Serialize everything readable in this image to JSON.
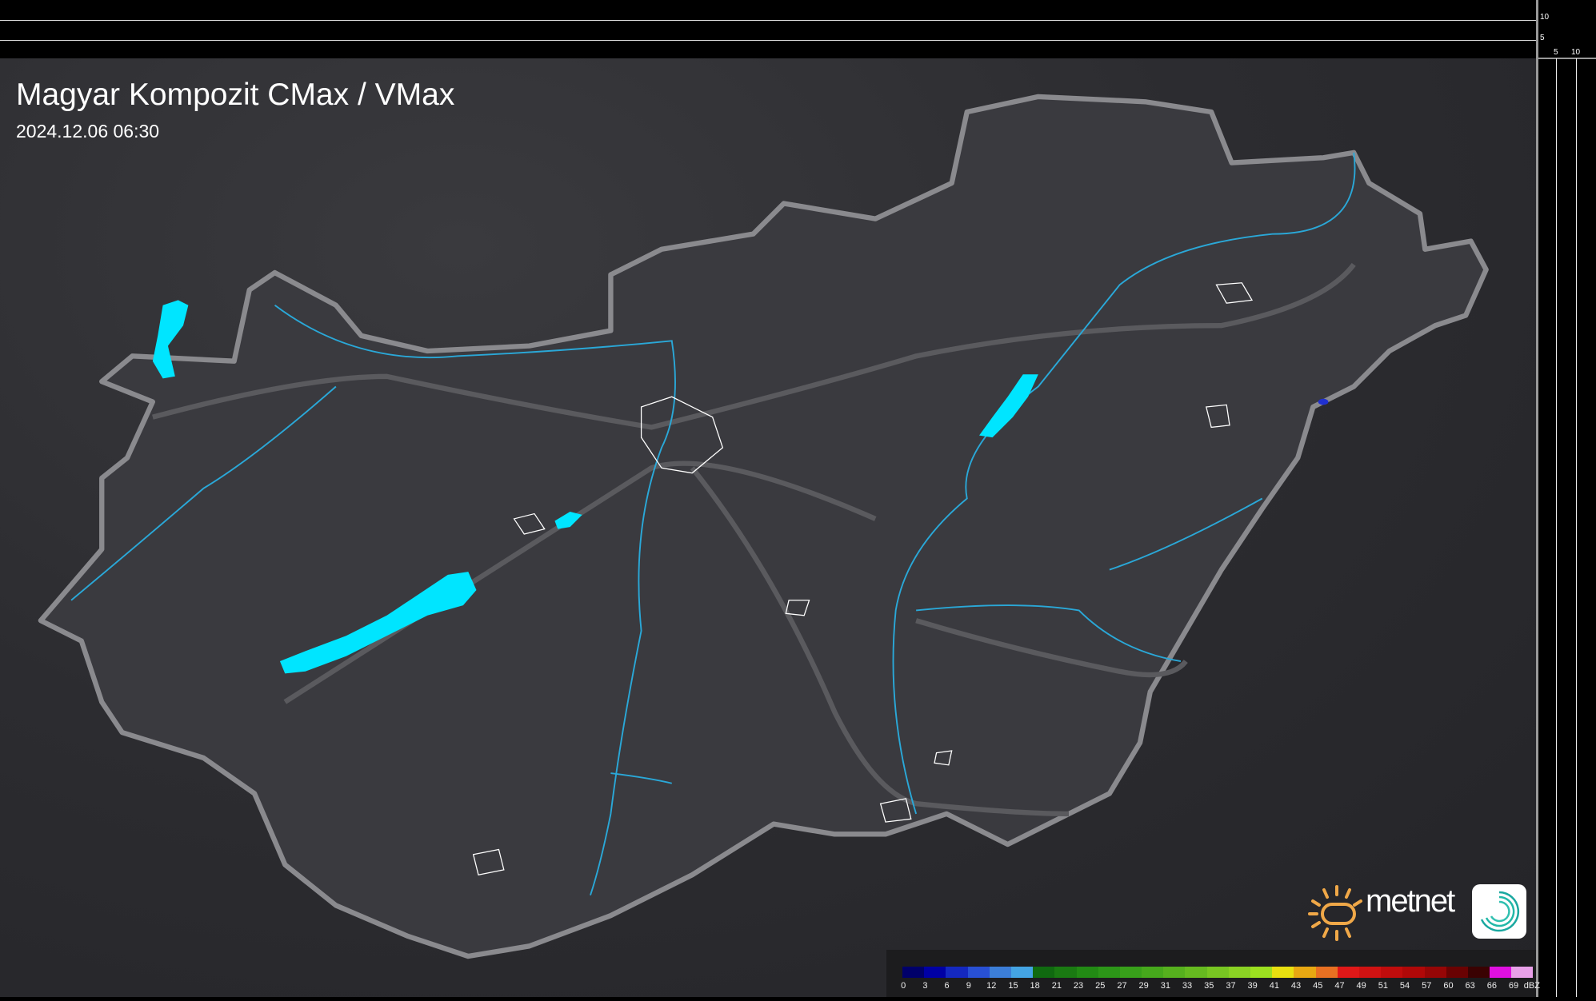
{
  "header": {
    "title": "Magyar Kompozit CMax / VMax",
    "timestamp": "2024.12.06 06:30"
  },
  "axes": {
    "vertical_ticks": [
      "10",
      "5"
    ],
    "horizontal_ticks": [
      "5",
      "10"
    ]
  },
  "branding": {
    "name": "metnet"
  },
  "legend": {
    "unit": "dBZ",
    "labels": [
      "0",
      "3",
      "6",
      "9",
      "12",
      "15",
      "18",
      "21",
      "23",
      "25",
      "27",
      "29",
      "31",
      "33",
      "35",
      "37",
      "39",
      "41",
      "43",
      "45",
      "47",
      "49",
      "51",
      "54",
      "57",
      "60",
      "63",
      "66",
      "69"
    ],
    "colors": [
      "#00006a",
      "#0000a4",
      "#1428c0",
      "#2850d4",
      "#3c7ed8",
      "#44a4e4",
      "#106a10",
      "#1a7a12",
      "#228a14",
      "#2c9618",
      "#38a01a",
      "#46a81c",
      "#56b01e",
      "#66ba20",
      "#78c622",
      "#8ad224",
      "#9ce020",
      "#e8e010",
      "#e8a812",
      "#e87022",
      "#e01818",
      "#d01212",
      "#c00c0c",
      "#b00808",
      "#960606",
      "#6a0202",
      "#3a0202",
      "#e010e0",
      "#e8a0e8",
      "#90e0e8"
    ]
  },
  "colors": {
    "lake": "#00e5ff",
    "river": "#2aa8d8",
    "border": "#8a8a8e",
    "road": "#5a5a5e"
  }
}
